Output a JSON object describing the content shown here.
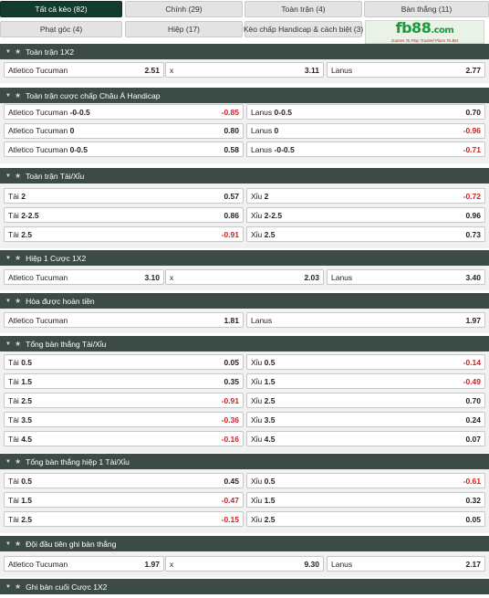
{
  "tabs": [
    {
      "label": "Tất cả kèo (82)",
      "active": true
    },
    {
      "label": "Chính (29)"
    },
    {
      "label": "Toàn trận (4)"
    },
    {
      "label": "Bàn thắng (11)"
    },
    {
      "label": "Phạt góc (4)"
    },
    {
      "label": "Hiệp (17)"
    },
    {
      "label": "Kèo chấp Handicap & cách biệt (3)"
    }
  ],
  "logo": {
    "text": "fb88",
    "suffix": ".com",
    "tagline": "Games To Play  Trusted Place To Bet"
  },
  "sections": [
    {
      "title": "Toàn trận 1X2",
      "type": "three",
      "rows": [
        [
          {
            "label": "Atletico Tucuman",
            "odd": "2.51"
          },
          {
            "label": "x",
            "odd": "3.11"
          },
          {
            "label": "Lanus",
            "odd": "2.77"
          }
        ]
      ]
    },
    {
      "title": "Toàn trận cược chấp Châu Á Handicap",
      "type": "two",
      "rows": [
        [
          {
            "label": "Atletico Tucuman",
            "line": "-0-0.5",
            "odd": "-0.85"
          },
          {
            "label": "Lanus",
            "line": "0-0.5",
            "odd": "0.70"
          }
        ],
        [
          {
            "label": "Atletico Tucuman",
            "line": "0",
            "odd": "0.80"
          },
          {
            "label": "Lanus",
            "line": "0",
            "odd": "-0.96"
          }
        ],
        [
          {
            "label": "Atletico Tucuman",
            "line": "0-0.5",
            "odd": "0.58"
          },
          {
            "label": "Lanus",
            "line": "-0-0.5",
            "odd": "-0.71"
          }
        ]
      ]
    },
    {
      "title": "Toàn trận Tài/Xỉu",
      "type": "two",
      "rows": [
        [
          {
            "label": "Tài",
            "line": "2",
            "odd": "0.57"
          },
          {
            "label": "Xỉu",
            "line": "2",
            "odd": "-0.72"
          }
        ],
        [
          {
            "label": "Tài",
            "line": "2-2.5",
            "odd": "0.86"
          },
          {
            "label": "Xỉu",
            "line": "2-2.5",
            "odd": "0.96"
          }
        ],
        [
          {
            "label": "Tài",
            "line": "2.5",
            "odd": "-0.91"
          },
          {
            "label": "Xỉu",
            "line": "2.5",
            "odd": "0.73"
          }
        ]
      ]
    },
    {
      "title": "Hiệp 1 Cược 1X2",
      "type": "three",
      "rows": [
        [
          {
            "label": "Atletico Tucuman",
            "odd": "3.10"
          },
          {
            "label": "x",
            "odd": "2.03"
          },
          {
            "label": "Lanus",
            "odd": "3.40"
          }
        ]
      ]
    },
    {
      "title": "Hòa được hoàn tiền",
      "type": "two",
      "rows": [
        [
          {
            "label": "Atletico Tucuman",
            "odd": "1.81"
          },
          {
            "label": "Lanus",
            "odd": "1.97"
          }
        ]
      ]
    },
    {
      "title": "Tổng bàn thắng Tài/Xỉu",
      "type": "two",
      "rows": [
        [
          {
            "label": "Tài",
            "line": "0.5",
            "odd": "0.05"
          },
          {
            "label": "Xỉu",
            "line": "0.5",
            "odd": "-0.14"
          }
        ],
        [
          {
            "label": "Tài",
            "line": "1.5",
            "odd": "0.35"
          },
          {
            "label": "Xỉu",
            "line": "1.5",
            "odd": "-0.49"
          }
        ],
        [
          {
            "label": "Tài",
            "line": "2.5",
            "odd": "-0.91"
          },
          {
            "label": "Xỉu",
            "line": "2.5",
            "odd": "0.70"
          }
        ],
        [
          {
            "label": "Tài",
            "line": "3.5",
            "odd": "-0.36"
          },
          {
            "label": "Xỉu",
            "line": "3.5",
            "odd": "0.24"
          }
        ],
        [
          {
            "label": "Tài",
            "line": "4.5",
            "odd": "-0.16"
          },
          {
            "label": "Xỉu",
            "line": "4.5",
            "odd": "0.07"
          }
        ]
      ]
    },
    {
      "title": "Tổng bàn thắng hiệp 1 Tài/Xỉu",
      "type": "two",
      "rows": [
        [
          {
            "label": "Tài",
            "line": "0.5",
            "odd": "0.45"
          },
          {
            "label": "Xỉu",
            "line": "0.5",
            "odd": "-0.61"
          }
        ],
        [
          {
            "label": "Tài",
            "line": "1.5",
            "odd": "-0.47"
          },
          {
            "label": "Xỉu",
            "line": "1.5",
            "odd": "0.32"
          }
        ],
        [
          {
            "label": "Tài",
            "line": "2.5",
            "odd": "-0.15"
          },
          {
            "label": "Xỉu",
            "line": "2.5",
            "odd": "0.05"
          }
        ]
      ]
    },
    {
      "title": "Đội đầu tiên ghi bàn thắng",
      "type": "three",
      "rows": [
        [
          {
            "label": "Atletico Tucuman",
            "odd": "1.97"
          },
          {
            "label": "x",
            "odd": "9.30"
          },
          {
            "label": "Lanus",
            "odd": "2.17"
          }
        ]
      ]
    },
    {
      "title": "Ghi bàn cuối Cược 1X2",
      "type": "three",
      "rows": []
    }
  ],
  "colors": {
    "header_bg": "#3c4b45",
    "active_tab": "#123d2c",
    "negative_odd": "#d11f1f",
    "logo_green": "#1a9a3a"
  },
  "icons": {
    "collapse": "chevron-down-icon",
    "favorite": "star-icon"
  }
}
